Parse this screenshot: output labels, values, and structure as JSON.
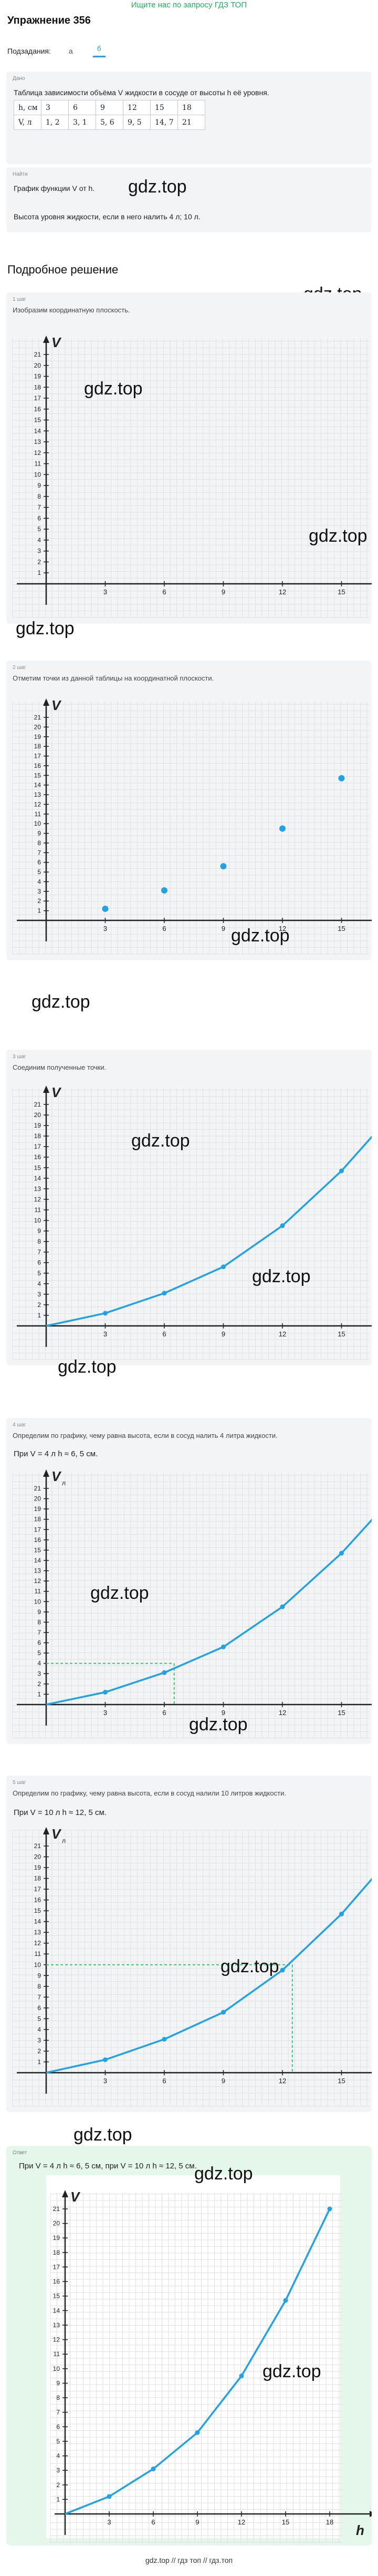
{
  "header": {
    "top_link": "Ищите нас по запросу ГДЗ ТОП",
    "title": "Упражнение 356",
    "subtasks_label": "Подзадания:",
    "tabs": [
      "а",
      "б"
    ]
  },
  "given": {
    "label": "Дано",
    "text": "Таблица зависимости объёма V жидкости в сосуде от высоты h её уровня.",
    "rows": [
      [
        "h, см",
        "3",
        "6",
        "9",
        "12",
        "15",
        "18"
      ],
      [
        "V, л",
        "1, 2",
        "3, 1",
        "5, 6",
        "9, 5",
        "14, 7",
        "21"
      ]
    ]
  },
  "find": {
    "label": "Найти",
    "line1": "График функции V от h.",
    "line2": "Высота уровня жидкости, если в него налить 4 л; 10 л."
  },
  "solution_title": "Подробное решение",
  "steps": [
    {
      "label": "1 шаг",
      "text": "Изобразим координатную плоскость."
    },
    {
      "label": "2 шаг",
      "text": "Отметим точки из данной таблицы на координатной плоскости."
    },
    {
      "label": "3 шаг",
      "text": "Соединим полученные точки."
    },
    {
      "label": "4 шаг",
      "text": "Определим по графику, чему равна высота, если в сосуд налить 4 литра жидкости.",
      "line": "При V = 4 л h ≈ 6, 5 см."
    },
    {
      "label": "5 шаг",
      "text": "Определим по графику, чему равна высота, если в сосуд налили 10 литров жидкости.",
      "line": "При V = 10 л h ≈ 12, 5 см."
    }
  ],
  "answer": {
    "label": "Ответ",
    "line": "При V = 4 л h ≈ 6, 5 см, при V = 10 л h ≈ 12, 5 см."
  },
  "axes": {
    "x": "h",
    "y": "V",
    "x_unit": "см",
    "y_unit": "л",
    "x_ticks": [
      "3",
      "6",
      "9",
      "12",
      "15",
      "18"
    ],
    "y_ticks": [
      "1",
      "2",
      "3",
      "4",
      "5",
      "6",
      "7",
      "8",
      "9",
      "10",
      "11",
      "12",
      "13",
      "14",
      "15",
      "16",
      "17",
      "18",
      "19",
      "20",
      "21"
    ]
  },
  "watermark": "gdz.top",
  "footer": "gdz.top // гдз топ // гдз.топ",
  "chart_data": {
    "type": "line",
    "title": "",
    "xlabel": "h",
    "ylabel": "V",
    "x": [
      3,
      6,
      9,
      12,
      15,
      18
    ],
    "y": [
      1.2,
      3.1,
      5.6,
      9.5,
      14.7,
      21
    ],
    "xlim": [
      0,
      18
    ],
    "ylim": [
      0,
      21
    ],
    "color": "#1fa3e6",
    "annotations": [
      {
        "V": 4,
        "h": 6.5
      },
      {
        "V": 10,
        "h": 12.5
      }
    ]
  }
}
